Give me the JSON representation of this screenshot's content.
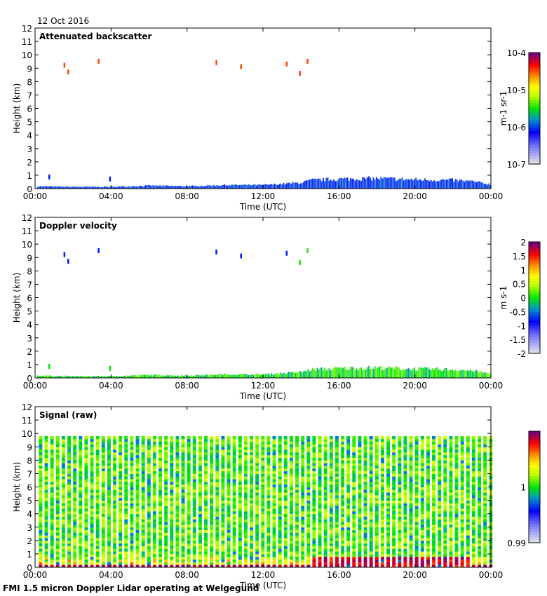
{
  "date_label": "12 Oct 2016",
  "footer": "FMI 1.5 micron Doppler Lidar operating at Welgegund",
  "chart_data": [
    {
      "type": "heatmap",
      "title": "Attenuated backscatter",
      "xlabel": "Time (UTC)",
      "ylabel": "Height (km)",
      "xlim": [
        0,
        24
      ],
      "ylim": [
        0,
        12
      ],
      "xticks": [
        "00:00",
        "04:00",
        "08:00",
        "12:00",
        "16:00",
        "20:00",
        "00:00"
      ],
      "yticks": [
        "0",
        "1",
        "2",
        "3",
        "4",
        "5",
        "6",
        "7",
        "8",
        "9",
        "10",
        "11",
        "12"
      ],
      "colorbar": {
        "label": "m-1 sr-1",
        "scale": "log",
        "range": [
          1e-07,
          0.0001
        ],
        "ticks": [
          "10-7",
          "10-6",
          "10-5",
          "10-4"
        ]
      },
      "features": {
        "boundary_layer": [
          [
            0,
            0.2
          ],
          [
            2,
            0.15
          ],
          [
            4,
            0.15
          ],
          [
            6,
            0.25
          ],
          [
            8,
            0.2
          ],
          [
            10,
            0.3
          ],
          [
            12,
            0.3
          ],
          [
            13,
            0.4
          ],
          [
            14,
            0.5
          ],
          [
            14.5,
            0.7
          ],
          [
            16,
            0.8
          ],
          [
            18,
            0.85
          ],
          [
            20,
            0.75
          ],
          [
            22,
            0.7
          ],
          [
            23,
            0.6
          ],
          [
            24,
            0.35
          ]
        ],
        "cloud_points": [
          [
            1.5,
            9.2
          ],
          [
            1.7,
            8.7
          ],
          [
            3.3,
            9.5
          ],
          [
            9.5,
            9.4
          ],
          [
            10.8,
            9.1
          ],
          [
            13.2,
            9.3
          ],
          [
            13.9,
            8.6
          ],
          [
            14.3,
            9.5
          ],
          [
            0.7,
            0.85
          ],
          [
            3.9,
            0.7
          ]
        ]
      }
    },
    {
      "type": "heatmap",
      "title": "Doppler velocity",
      "xlabel": "Time (UTC)",
      "ylabel": "Height (km)",
      "xlim": [
        0,
        24
      ],
      "ylim": [
        0,
        12
      ],
      "xticks": [
        "00:00",
        "04:00",
        "08:00",
        "12:00",
        "16:00",
        "20:00",
        "00:00"
      ],
      "yticks": [
        "0",
        "1",
        "2",
        "3",
        "4",
        "5",
        "6",
        "7",
        "8",
        "9",
        "10",
        "11",
        "12"
      ],
      "colorbar": {
        "label": "m s-1",
        "scale": "linear",
        "range": [
          -2,
          2
        ],
        "ticks": [
          "-2",
          "-1.5",
          "-1",
          "-0.5",
          "0",
          "0.5",
          "1",
          "1.5",
          "2"
        ]
      }
    },
    {
      "type": "heatmap",
      "title": "Signal (raw)",
      "xlabel": "Time (UTC)",
      "ylabel": "Height (km)",
      "xlim": [
        0,
        24
      ],
      "ylim": [
        0,
        12
      ],
      "max_height_km": 9.6,
      "xticks": [
        "00:00",
        "04:00",
        "08:00",
        "12:00",
        "16:00",
        "20:00",
        "00:00"
      ],
      "yticks": [
        "0",
        "1",
        "2",
        "3",
        "4",
        "5",
        "6",
        "7",
        "8",
        "9",
        "10",
        "11",
        "12"
      ],
      "colorbar": {
        "label": "",
        "scale": "linear",
        "range": [
          0.99,
          1.01
        ],
        "ticks": [
          "0.99",
          "1"
        ]
      }
    }
  ]
}
